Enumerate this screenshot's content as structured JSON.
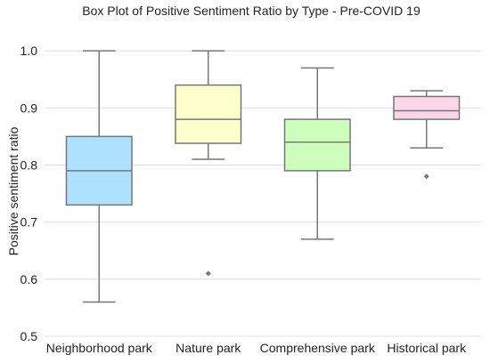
{
  "chart_data": {
    "type": "box",
    "title": "Box Plot of Positive Sentiment Ratio by Type - Pre-COVID 19",
    "xlabel": "",
    "ylabel": "Positive sentiment ratio",
    "ylim": [
      0.5,
      1.05
    ],
    "yticks": [
      "0.5",
      "0.6",
      "0.7",
      "0.8",
      "0.9",
      "1.0"
    ],
    "grid": "horizontal",
    "categories": [
      "Neighborhood park",
      "Nature park",
      "Comprehensive park",
      "Historical park"
    ],
    "boxes": [
      {
        "category": "Neighborhood park",
        "whisker_low": 0.56,
        "q1": 0.73,
        "median": 0.79,
        "q3": 0.85,
        "whisker_high": 1.0,
        "outliers": [],
        "color": "#aee0ff"
      },
      {
        "category": "Nature park",
        "whisker_low": 0.81,
        "q1": 0.838,
        "median": 0.88,
        "q3": 0.94,
        "whisker_high": 1.0,
        "outliers": [
          0.61
        ],
        "color": "#ffffcc"
      },
      {
        "category": "Comprehensive park",
        "whisker_low": 0.67,
        "q1": 0.79,
        "median": 0.84,
        "q3": 0.88,
        "whisker_high": 0.97,
        "outliers": [],
        "color": "#ccffbb"
      },
      {
        "category": "Historical park",
        "whisker_low": 0.83,
        "q1": 0.88,
        "median": 0.895,
        "q3": 0.92,
        "whisker_high": 0.93,
        "outliers": [
          0.78
        ],
        "color": "#ffd6e8"
      }
    ]
  }
}
